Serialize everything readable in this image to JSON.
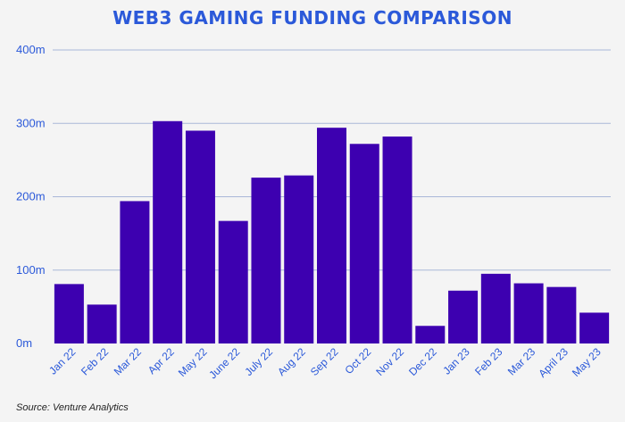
{
  "chart_data": {
    "type": "bar",
    "title": "WEB3 GAMING FUNDING COMPARISON",
    "xlabel": "",
    "ylabel": "",
    "ylim": [
      0,
      400
    ],
    "yticks": [
      {
        "value": 0,
        "label": "0m"
      },
      {
        "value": 100,
        "label": "100m"
      },
      {
        "value": 200,
        "label": "200m"
      },
      {
        "value": 300,
        "label": "300m"
      },
      {
        "value": 400,
        "label": "400m"
      }
    ],
    "categories": [
      "Jan 22",
      "Feb 22",
      "Mar 22",
      "Apr 22",
      "May 22",
      "June 22",
      "July 22",
      "Aug 22",
      "Sep 22",
      "Oct 22",
      "Nov 22",
      "Dec 22",
      "Jan 23",
      "Feb 23",
      "Mar 23",
      "April 23",
      "May 23"
    ],
    "values": [
      81,
      53,
      194,
      303,
      290,
      167,
      226,
      229,
      294,
      272,
      282,
      24,
      72,
      95,
      82,
      77,
      42
    ],
    "units": "millions",
    "grid": true
  },
  "source": "Source: Venture Analytics",
  "colors": {
    "bar": "#3d00b0",
    "title": "#2b59d9",
    "axis_text": "#2b59d9",
    "grid": "#a9b8d8",
    "background": "#f4f4f4"
  }
}
